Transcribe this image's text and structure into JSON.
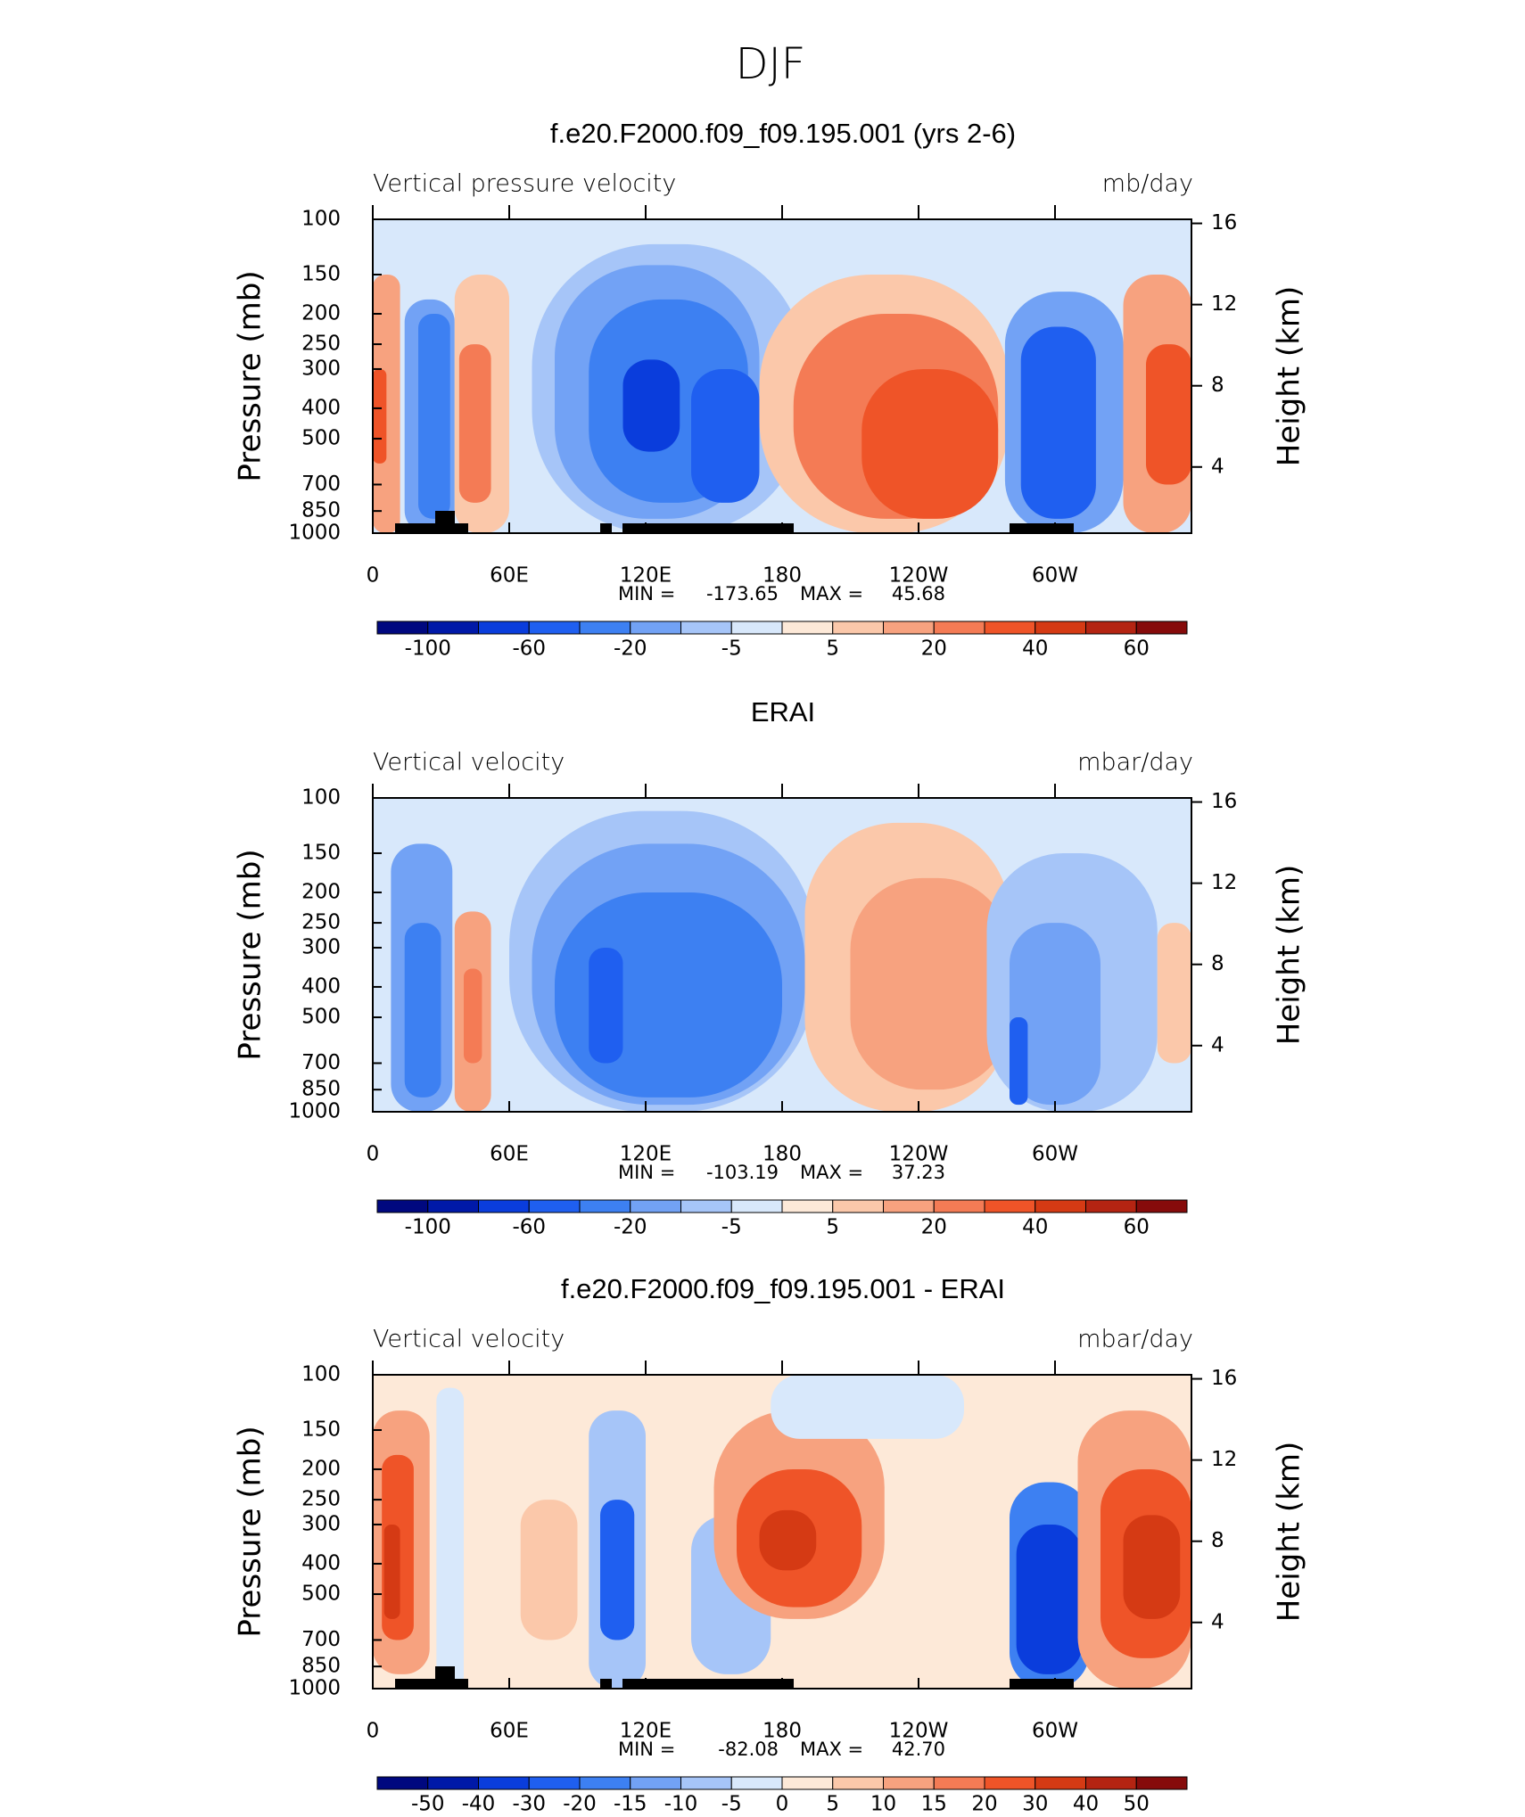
{
  "figure_title": "DJF",
  "chart_data": [
    {
      "type": "contour",
      "title": "f.e20.F2000.f09_f09.195.001 (yrs 2-6)",
      "subtitle_left": "Vertical pressure velocity",
      "subtitle_right": "mb/day",
      "ylabel": "Pressure (mb)",
      "y2label": "Height (km)",
      "log_y": true,
      "ylim": [
        1000,
        100
      ],
      "yticks": [
        100,
        150,
        200,
        250,
        300,
        400,
        500,
        700,
        850,
        1000
      ],
      "y2lim": [
        0.74,
        16.2
      ],
      "y2ticks": [
        4,
        8,
        12,
        16
      ],
      "xlim": [
        0,
        360
      ],
      "xticks": [
        0,
        {
          "value": 60,
          "label": "60E"
        },
        {
          "value": 120,
          "label": "120E"
        },
        180,
        {
          "value": 240,
          "label": "120W"
        },
        {
          "value": 300,
          "label": "60W"
        }
      ],
      "stats": {
        "labels": [
          "MIN =",
          "MAX ="
        ],
        "values": [
          -173.65,
          45.68
        ]
      },
      "colorbar": {
        "levels": [
          -100,
          -80,
          -60,
          -40,
          -20,
          -10,
          -5,
          0,
          5,
          10,
          20,
          30,
          40,
          50,
          60
        ],
        "ticks": [
          -100,
          -60,
          -20,
          -5,
          5,
          20,
          40,
          60
        ],
        "colors": [
          "#00087f",
          "#0019a8",
          "#0a3ddc",
          "#1f5ff0",
          "#3d80f2",
          "#72a2f5",
          "#a6c5f8",
          "#d8e8fb",
          "#fde9d8",
          "#fbc8aa",
          "#f7a27f",
          "#f47b55",
          "#ef5428",
          "#d53a14",
          "#b42412",
          "#860b0b"
        ]
      },
      "field": [
        {
          "lon": [
            0,
            360
          ],
          "p": [
            100,
            1000
          ],
          "value": -3
        },
        {
          "lon": [
            0,
            12
          ],
          "p": [
            150,
            1000
          ],
          "value": 10
        },
        {
          "lon": [
            0,
            6
          ],
          "p": [
            300,
            600
          ],
          "value": 30
        },
        {
          "lon": [
            14,
            36
          ],
          "p": [
            180,
            1000
          ],
          "value": -20
        },
        {
          "lon": [
            20,
            34
          ],
          "p": [
            200,
            900
          ],
          "value": -40
        },
        {
          "lon": [
            36,
            60
          ],
          "p": [
            150,
            1000
          ],
          "value": 5
        },
        {
          "lon": [
            38,
            52
          ],
          "p": [
            250,
            800
          ],
          "value": 20
        },
        {
          "lon": [
            70,
            190
          ],
          "p": [
            120,
            1000
          ],
          "value": -10
        },
        {
          "lon": [
            80,
            170
          ],
          "p": [
            140,
            900
          ],
          "value": -20
        },
        {
          "lon": [
            95,
            165
          ],
          "p": [
            180,
            800
          ],
          "value": -40
        },
        {
          "lon": [
            110,
            135
          ],
          "p": [
            280,
            550
          ],
          "value": -80
        },
        {
          "lon": [
            140,
            170
          ],
          "p": [
            300,
            800
          ],
          "value": -60
        },
        {
          "lon": [
            170,
            280
          ],
          "p": [
            150,
            1000
          ],
          "value": 5
        },
        {
          "lon": [
            185,
            275
          ],
          "p": [
            200,
            900
          ],
          "value": 20
        },
        {
          "lon": [
            215,
            275
          ],
          "p": [
            300,
            900
          ],
          "value": 30
        },
        {
          "lon": [
            278,
            330
          ],
          "p": [
            170,
            1000
          ],
          "value": -20
        },
        {
          "lon": [
            285,
            318
          ],
          "p": [
            220,
            900
          ],
          "value": -60
        },
        {
          "lon": [
            330,
            360
          ],
          "p": [
            150,
            1000
          ],
          "value": 10
        },
        {
          "lon": [
            340,
            360
          ],
          "p": [
            250,
            700
          ],
          "value": 30
        }
      ]
    },
    {
      "type": "contour",
      "title": "ERAI",
      "subtitle_left": "Vertical velocity",
      "subtitle_right": "mbar/day",
      "ylabel": "Pressure (mb)",
      "y2label": "Height (km)",
      "log_y": true,
      "ylim": [
        1000,
        100
      ],
      "yticks": [
        100,
        150,
        200,
        250,
        300,
        400,
        500,
        700,
        850,
        1000
      ],
      "y2lim": [
        0.74,
        16.2
      ],
      "y2ticks": [
        4,
        8,
        12,
        16
      ],
      "xlim": [
        0,
        360
      ],
      "xticks": [
        0,
        {
          "value": 60,
          "label": "60E"
        },
        {
          "value": 120,
          "label": "120E"
        },
        180,
        {
          "value": 240,
          "label": "120W"
        },
        {
          "value": 300,
          "label": "60W"
        }
      ],
      "stats": {
        "labels": [
          "MIN =",
          "MAX ="
        ],
        "values": [
          -103.19,
          37.23
        ]
      },
      "colorbar": {
        "levels": [
          -100,
          -80,
          -60,
          -40,
          -20,
          -10,
          -5,
          0,
          5,
          10,
          20,
          30,
          40,
          50,
          60
        ],
        "ticks": [
          -100,
          -60,
          -20,
          -5,
          5,
          20,
          40,
          60
        ],
        "colors": [
          "#00087f",
          "#0019a8",
          "#0a3ddc",
          "#1f5ff0",
          "#3d80f2",
          "#72a2f5",
          "#a6c5f8",
          "#d8e8fb",
          "#fde9d8",
          "#fbc8aa",
          "#f7a27f",
          "#f47b55",
          "#ef5428",
          "#d53a14",
          "#b42412",
          "#860b0b"
        ]
      },
      "field": [
        {
          "lon": [
            0,
            360
          ],
          "p": [
            100,
            1000
          ],
          "value": -3
        },
        {
          "lon": [
            8,
            35
          ],
          "p": [
            140,
            1000
          ],
          "value": -20
        },
        {
          "lon": [
            14,
            30
          ],
          "p": [
            250,
            900
          ],
          "value": -40
        },
        {
          "lon": [
            36,
            52
          ],
          "p": [
            230,
            1000
          ],
          "value": 10
        },
        {
          "lon": [
            40,
            48
          ],
          "p": [
            350,
            700
          ],
          "value": 20
        },
        {
          "lon": [
            60,
            195
          ],
          "p": [
            110,
            1000
          ],
          "value": -10
        },
        {
          "lon": [
            70,
            190
          ],
          "p": [
            140,
            950
          ],
          "value": -20
        },
        {
          "lon": [
            80,
            180
          ],
          "p": [
            200,
            900
          ],
          "value": -40
        },
        {
          "lon": [
            95,
            110
          ],
          "p": [
            300,
            700
          ],
          "value": -60
        },
        {
          "lon": [
            190,
            280
          ],
          "p": [
            120,
            1000
          ],
          "value": 5
        },
        {
          "lon": [
            210,
            280
          ],
          "p": [
            180,
            850
          ],
          "value": 15
        },
        {
          "lon": [
            270,
            345
          ],
          "p": [
            150,
            1000
          ],
          "value": -10
        },
        {
          "lon": [
            280,
            320
          ],
          "p": [
            250,
            950
          ],
          "value": -20
        },
        {
          "lon": [
            280,
            288
          ],
          "p": [
            500,
            950
          ],
          "value": -60
        },
        {
          "lon": [
            345,
            360
          ],
          "p": [
            250,
            700
          ],
          "value": 5
        }
      ]
    },
    {
      "type": "contour",
      "title": "f.e20.F2000.f09_f09.195.001 - ERAI",
      "subtitle_left": "Vertical velocity",
      "subtitle_right": "mbar/day",
      "ylabel": "Pressure (mb)",
      "y2label": "Height (km)",
      "log_y": true,
      "ylim": [
        1000,
        100
      ],
      "yticks": [
        100,
        150,
        200,
        250,
        300,
        400,
        500,
        700,
        850,
        1000
      ],
      "y2lim": [
        0.74,
        16.2
      ],
      "y2ticks": [
        4,
        8,
        12,
        16
      ],
      "xlim": [
        0,
        360
      ],
      "xticks": [
        0,
        {
          "value": 60,
          "label": "60E"
        },
        {
          "value": 120,
          "label": "120E"
        },
        180,
        {
          "value": 240,
          "label": "120W"
        },
        {
          "value": 300,
          "label": "60W"
        }
      ],
      "stats": {
        "labels": [
          "MIN =",
          "MAX ="
        ],
        "values": [
          -82.08,
          42.7
        ],
        "value_labels": [
          "-82.08",
          "42.70"
        ]
      },
      "colorbar": {
        "levels": [
          -50,
          -40,
          -30,
          -20,
          -15,
          -10,
          -5,
          0,
          5,
          10,
          15,
          20,
          30,
          40,
          50
        ],
        "ticks": [
          -50,
          -40,
          -30,
          -20,
          -15,
          -10,
          -5,
          0,
          5,
          10,
          15,
          20,
          30,
          40,
          50
        ],
        "colors": [
          "#00087f",
          "#0019a8",
          "#0a3ddc",
          "#1f5ff0",
          "#3d80f2",
          "#72a2f5",
          "#a6c5f8",
          "#d8e8fb",
          "#fde9d8",
          "#fbc8aa",
          "#f7a27f",
          "#f47b55",
          "#ef5428",
          "#d53a14",
          "#b42412",
          "#860b0b"
        ]
      },
      "field": [
        {
          "lon": [
            0,
            360
          ],
          "p": [
            100,
            1000
          ],
          "value": 2
        },
        {
          "lon": [
            0,
            25
          ],
          "p": [
            130,
            900
          ],
          "value": 10
        },
        {
          "lon": [
            4,
            18
          ],
          "p": [
            180,
            700
          ],
          "value": 20
        },
        {
          "lon": [
            5,
            12
          ],
          "p": [
            300,
            600
          ],
          "value": 30
        },
        {
          "lon": [
            28,
            40
          ],
          "p": [
            110,
            1000
          ],
          "value": -5
        },
        {
          "lon": [
            65,
            90
          ],
          "p": [
            250,
            700
          ],
          "value": 5
        },
        {
          "lon": [
            95,
            120
          ],
          "p": [
            130,
            1000
          ],
          "value": -10
        },
        {
          "lon": [
            100,
            115
          ],
          "p": [
            250,
            700
          ],
          "value": -30
        },
        {
          "lon": [
            140,
            175
          ],
          "p": [
            280,
            900
          ],
          "value": -10
        },
        {
          "lon": [
            150,
            225
          ],
          "p": [
            130,
            600
          ],
          "value": 10
        },
        {
          "lon": [
            160,
            215
          ],
          "p": [
            200,
            550
          ],
          "value": 20
        },
        {
          "lon": [
            170,
            195
          ],
          "p": [
            270,
            420
          ],
          "value": 30
        },
        {
          "lon": [
            175,
            260
          ],
          "p": [
            100,
            160
          ],
          "value": -3
        },
        {
          "lon": [
            280,
            315
          ],
          "p": [
            220,
            1000
          ],
          "value": -20
        },
        {
          "lon": [
            283,
            312
          ],
          "p": [
            300,
            900
          ],
          "value": -40
        },
        {
          "lon": [
            310,
            360
          ],
          "p": [
            130,
            1000
          ],
          "value": 10
        },
        {
          "lon": [
            320,
            360
          ],
          "p": [
            200,
            800
          ],
          "value": 20
        },
        {
          "lon": [
            330,
            355
          ],
          "p": [
            280,
            600
          ],
          "value": 30
        }
      ]
    }
  ]
}
